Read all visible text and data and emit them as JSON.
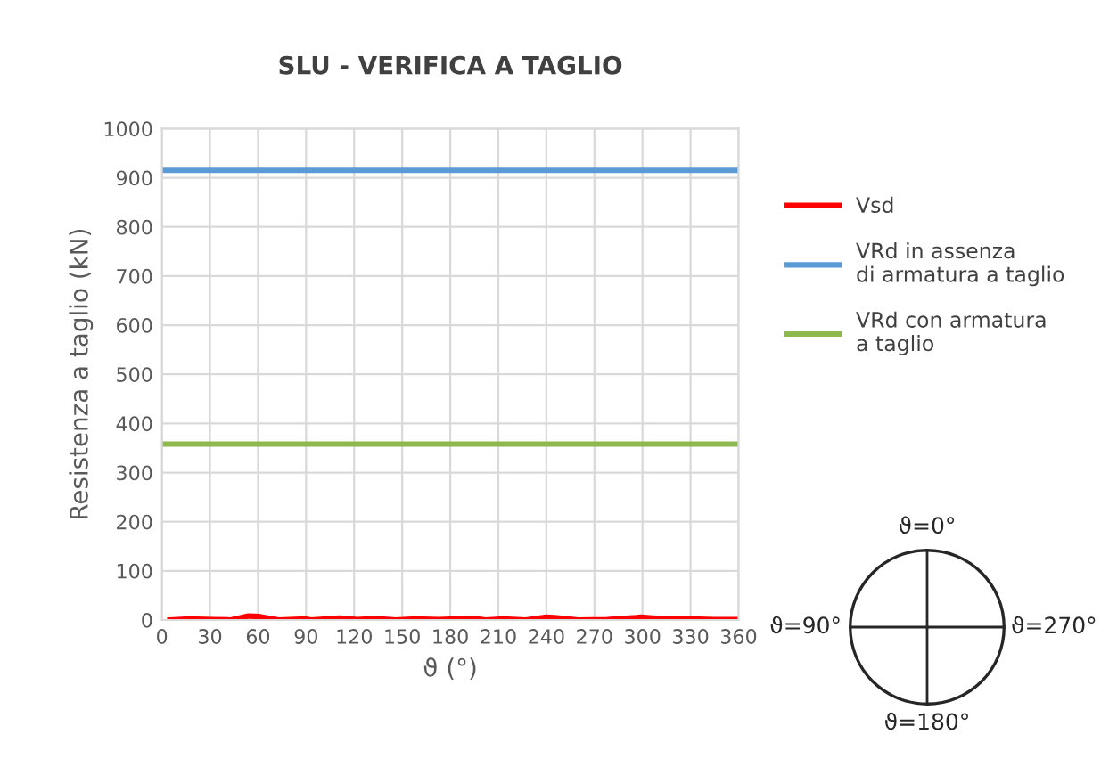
{
  "chart_data": {
    "type": "line",
    "title": "SLU - VERIFICA A TAGLIO",
    "xlabel": "ϑ (°)",
    "ylabel": "Resistenza a taglio (kN)",
    "series": [
      {
        "name": "Vsd",
        "color": "#ff0000",
        "x": [
          5,
          17,
          32,
          43,
          54,
          61,
          73,
          90,
          93,
          111,
          122,
          133,
          146,
          158,
          173,
          191,
          198,
          202,
          213,
          227,
          240,
          245,
          260,
          278,
          296,
          299,
          310,
          330,
          345,
          360
        ],
        "values": [
          0,
          2,
          1,
          0,
          8,
          7,
          0,
          2,
          0,
          4,
          1,
          3,
          0,
          2,
          1,
          3,
          2,
          0,
          2,
          0,
          6,
          5,
          0,
          1,
          5,
          6,
          3,
          2,
          1,
          1
        ]
      },
      {
        "name": "VRd in assenza di armatura a taglio",
        "color": "#5b9bd5",
        "x": [
          0,
          360
        ],
        "values": [
          915,
          915
        ]
      },
      {
        "name": "VRd con armatura a taglio",
        "color": "#8db94c",
        "x": [
          0,
          360
        ],
        "values": [
          358,
          358
        ]
      }
    ],
    "xlim": [
      0,
      360
    ],
    "xticks": [
      0,
      30,
      60,
      90,
      120,
      150,
      180,
      210,
      240,
      270,
      300,
      330,
      360
    ],
    "ylim": [
      0,
      1000
    ],
    "yticks": [
      0,
      100,
      200,
      300,
      400,
      500,
      600,
      700,
      800,
      900,
      1000
    ],
    "grid": true,
    "legend": "right",
    "marker": "none",
    "line_style": "solid",
    "annotations": [
      "ϑ=0°",
      "ϑ=90°",
      "ϑ=270°",
      "ϑ=180°"
    ]
  }
}
